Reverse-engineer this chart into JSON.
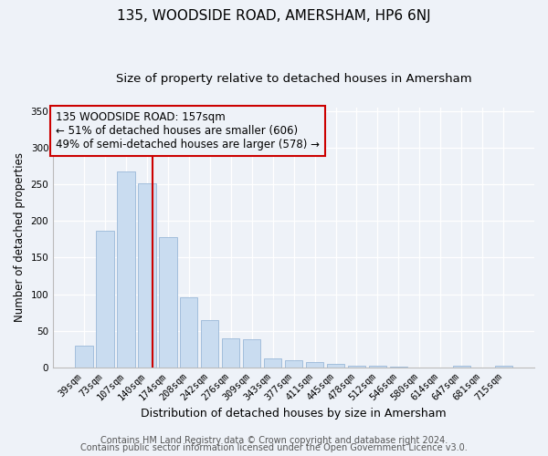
{
  "title": "135, WOODSIDE ROAD, AMERSHAM, HP6 6NJ",
  "subtitle": "Size of property relative to detached houses in Amersham",
  "xlabel": "Distribution of detached houses by size in Amersham",
  "ylabel": "Number of detached properties",
  "bar_labels": [
    "39sqm",
    "73sqm",
    "107sqm",
    "140sqm",
    "174sqm",
    "208sqm",
    "242sqm",
    "276sqm",
    "309sqm",
    "343sqm",
    "377sqm",
    "411sqm",
    "445sqm",
    "478sqm",
    "512sqm",
    "546sqm",
    "580sqm",
    "614sqm",
    "647sqm",
    "681sqm",
    "715sqm"
  ],
  "bar_values": [
    30,
    187,
    267,
    252,
    178,
    96,
    65,
    40,
    39,
    13,
    10,
    8,
    5,
    2,
    3,
    1,
    0,
    0,
    3,
    0,
    2
  ],
  "bar_color": "#c9dcf0",
  "bar_edgecolor": "#9ab8d8",
  "vline_x": 3.27,
  "vline_color": "#cc0000",
  "annotation_text": "135 WOODSIDE ROAD: 157sqm\n← 51% of detached houses are smaller (606)\n49% of semi-detached houses are larger (578) →",
  "annotation_box_edgecolor": "#cc0000",
  "ylim": [
    0,
    355
  ],
  "yticks": [
    0,
    50,
    100,
    150,
    200,
    250,
    300,
    350
  ],
  "footer_line1": "Contains HM Land Registry data © Crown copyright and database right 2024.",
  "footer_line2": "Contains public sector information licensed under the Open Government Licence v3.0.",
  "background_color": "#eef2f8",
  "grid_color": "#ffffff",
  "title_fontsize": 11,
  "subtitle_fontsize": 9.5,
  "xlabel_fontsize": 9,
  "ylabel_fontsize": 8.5,
  "tick_fontsize": 7.5,
  "annotation_fontsize": 8.5,
  "footer_fontsize": 7
}
